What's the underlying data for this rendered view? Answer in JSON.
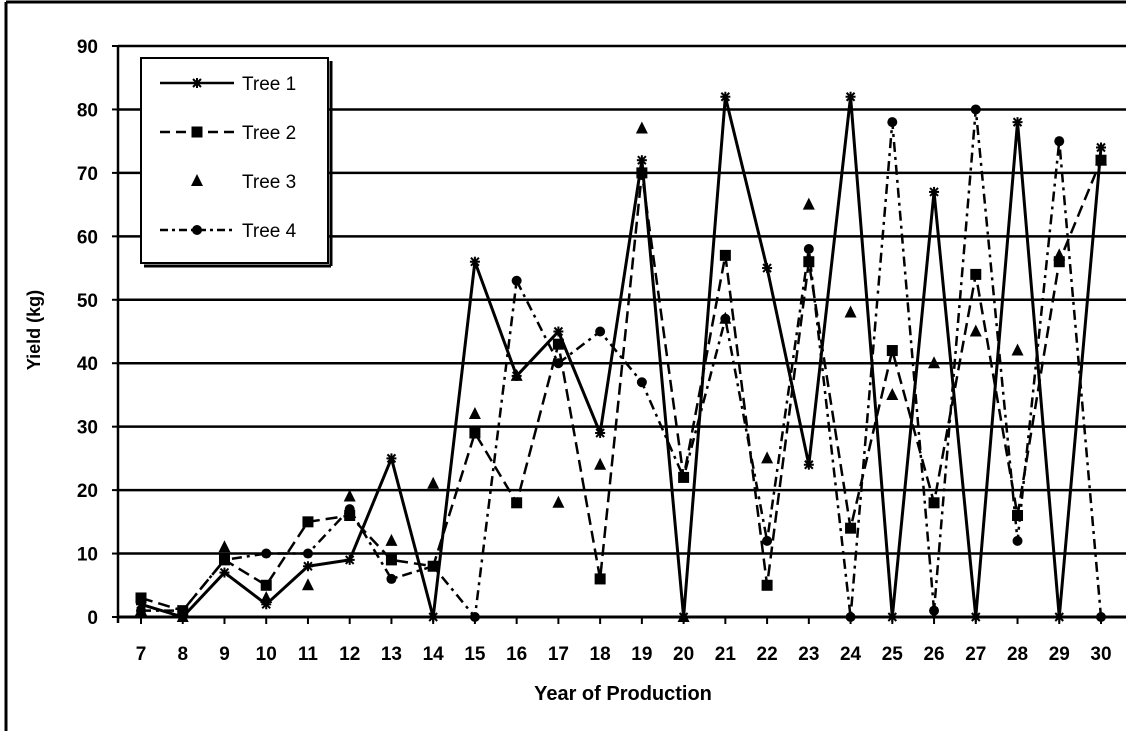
{
  "chart_data": {
    "type": "line",
    "title": "",
    "xlabel": "Year of Production",
    "ylabel": "Yield (kg)",
    "ylim": [
      0,
      90
    ],
    "yticks": [
      0,
      10,
      20,
      30,
      40,
      50,
      60,
      70,
      80,
      90
    ],
    "ytick_labels": [
      "0",
      "10",
      "20",
      "30",
      "40",
      "50",
      "60",
      "70",
      "80",
      "90"
    ],
    "grid": "horizontal",
    "legend_position": "top-left",
    "categories": [
      "7",
      "8",
      "9",
      "10",
      "11",
      "12",
      "13",
      "14",
      "15",
      "16",
      "17",
      "18",
      "19",
      "20",
      "21",
      "22",
      "23",
      "24",
      "25",
      "26",
      "27",
      "28",
      "29",
      "30"
    ],
    "series": [
      {
        "name": "Tree 1",
        "marker": "star",
        "dash": "solid",
        "values": [
          2,
          0,
          7,
          2,
          8,
          9,
          25,
          0,
          56,
          38,
          45,
          29,
          72,
          0,
          82,
          55,
          24,
          82,
          0,
          67,
          0,
          78,
          0,
          74
        ]
      },
      {
        "name": "Tree 2",
        "marker": "square",
        "dash": "dashed",
        "values": [
          3,
          1,
          9,
          5,
          15,
          16,
          9,
          8,
          29,
          18,
          43,
          6,
          70,
          22,
          57,
          5,
          56,
          14,
          42,
          18,
          54,
          16,
          56,
          72
        ]
      },
      {
        "name": "Tree 3",
        "marker": "triangle",
        "dash": "none",
        "values": [
          1,
          0,
          11,
          3,
          5,
          19,
          12,
          21,
          32,
          38,
          18,
          24,
          77,
          0,
          47,
          25,
          65,
          48,
          35,
          40,
          45,
          42,
          57,
          72
        ]
      },
      {
        "name": "Tree 4",
        "marker": "circle",
        "dash": "dashdot",
        "values": [
          1,
          1,
          9,
          10,
          10,
          17,
          6,
          8,
          0,
          53,
          40,
          45,
          37,
          22,
          47,
          12,
          58,
          0,
          78,
          1,
          80,
          12,
          75,
          0
        ]
      }
    ]
  }
}
